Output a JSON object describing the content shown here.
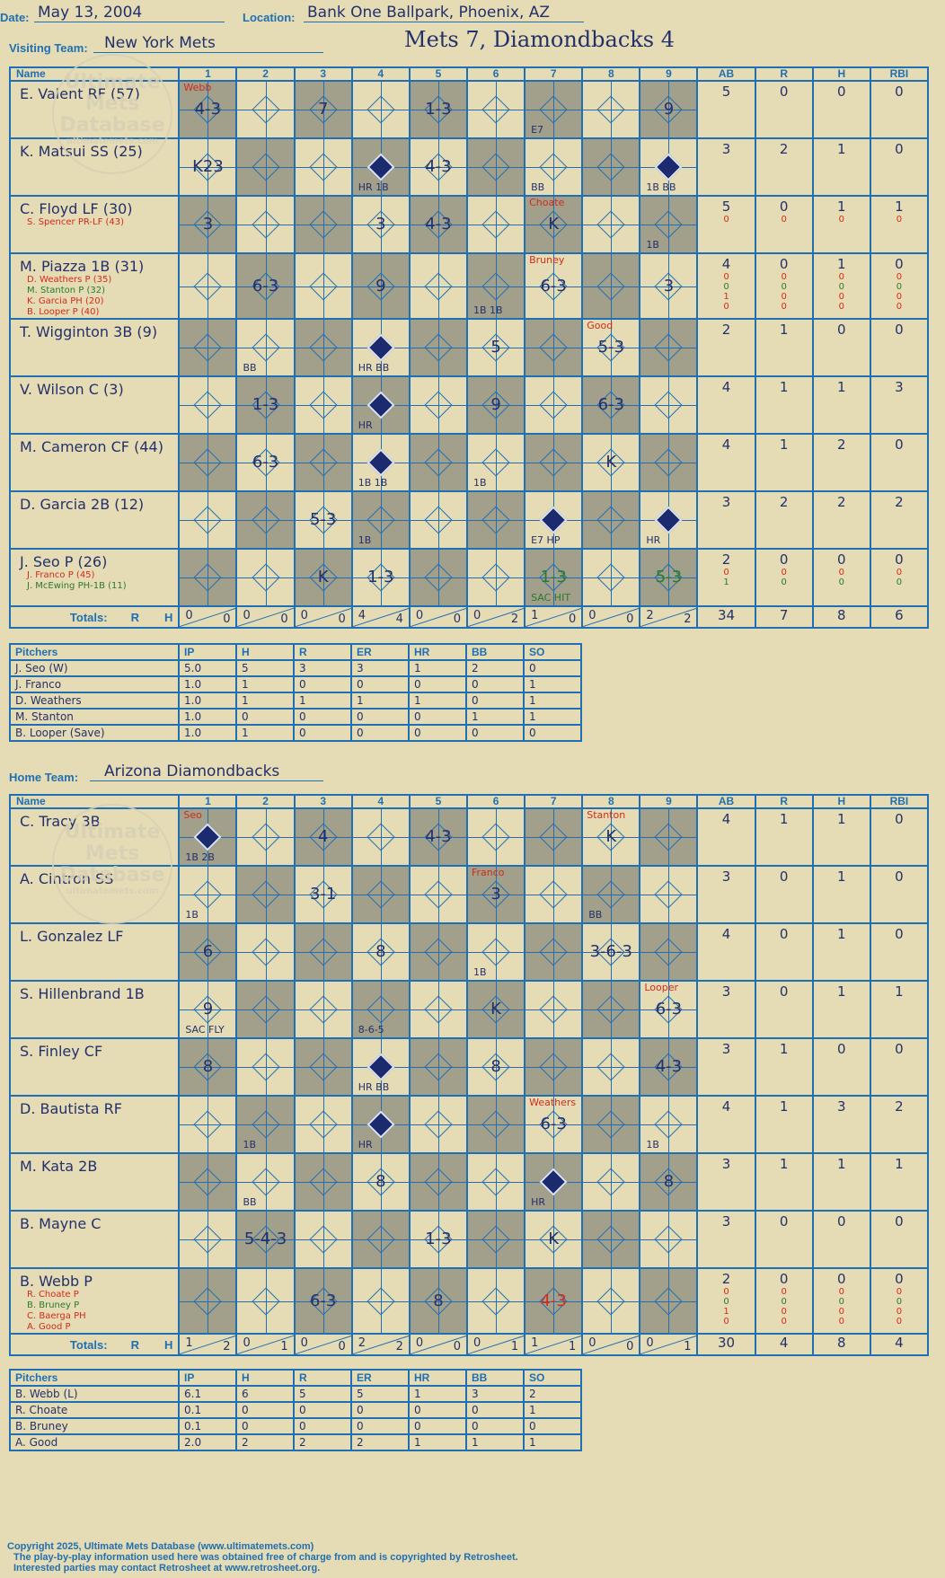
{
  "header": {
    "date_label": "Date:",
    "date": "May 13, 2004",
    "location_label": "Location:",
    "location": "Bank One Ballpark, Phoenix, AZ",
    "visiting_label": "Visiting Team:",
    "visiting_team": "New York Mets",
    "home_label": "Home Team:",
    "home_team": "Arizona Diamondbacks",
    "game_title": "Mets 7, Diamondbacks 4"
  },
  "watermark": {
    "line1": "Ultimate",
    "line2": "Mets",
    "line3": "Database",
    "line4": "ultimatemets.com"
  },
  "grid_headers": {
    "name": "Name",
    "innings": [
      "1",
      "2",
      "3",
      "4",
      "5",
      "6",
      "7",
      "8",
      "9"
    ],
    "stats": [
      "AB",
      "R",
      "H",
      "RBI"
    ],
    "totals_label": "Totals:",
    "r_label": "R",
    "h_label": "H"
  },
  "pitch_headers": {
    "pitchers": "Pitchers",
    "cols": [
      "IP",
      "H",
      "R",
      "ER",
      "HR",
      "BB",
      "SO"
    ]
  },
  "visiting": {
    "rows": [
      {
        "name": "E. Valent RF (57)",
        "subs": [],
        "stats": [
          [
            "5"
          ],
          [
            "0"
          ],
          [
            "0"
          ],
          [
            "0"
          ]
        ],
        "cells": [
          {
            "p": "4-3",
            "note": "Webb",
            "notecolor": "red"
          },
          {},
          {
            "p": "7"
          },
          {},
          {
            "p": "1-3"
          },
          {},
          {
            "p": "",
            "small": "E7"
          },
          {},
          {
            "p": "9"
          }
        ]
      },
      {
        "name": "K. Matsui SS (25)",
        "subs": [],
        "stats": [
          [
            "3"
          ],
          [
            "2"
          ],
          [
            "1"
          ],
          [
            "0"
          ]
        ],
        "cells": [
          {
            "p": "K23"
          },
          {},
          {},
          {
            "run": true,
            "small": "HR 1B"
          },
          {
            "p": "4-3"
          },
          {},
          {
            "p": "",
            "small": "BB"
          },
          {},
          {
            "run": true,
            "small": "1B BB"
          }
        ]
      },
      {
        "name": "C. Floyd LF (30)",
        "subs": [
          {
            "t": "S. Spencer PR-LF (43)",
            "c": "red"
          }
        ],
        "stats": [
          [
            "5",
            "0"
          ],
          [
            "0",
            "0"
          ],
          [
            "1",
            "0"
          ],
          [
            "1",
            "0"
          ]
        ],
        "cells": [
          {
            "p": "3"
          },
          {},
          {},
          {
            "p": "3"
          },
          {
            "p": "4-3"
          },
          {},
          {
            "p": "K",
            "note": "Choate",
            "notecolor": "red"
          },
          {},
          {
            "p": "",
            "small": "1B"
          }
        ]
      },
      {
        "name": "M. Piazza 1B (31)",
        "subs": [
          {
            "t": "D. Weathers P (35)",
            "c": "red"
          },
          {
            "t": "M. Stanton P (32)",
            "c": "green"
          },
          {
            "t": "K. Garcia PH (20)",
            "c": "red"
          },
          {
            "t": "B. Looper P (40)",
            "c": "red"
          }
        ],
        "stats": [
          [
            "4",
            "0",
            "0",
            "1",
            "0"
          ],
          [
            "0",
            "0",
            "0",
            "0",
            "0"
          ],
          [
            "1",
            "0",
            "0",
            "0",
            "0"
          ],
          [
            "0",
            "0",
            "0",
            "0",
            "0"
          ]
        ],
        "cells": [
          {},
          {
            "p": "6-3"
          },
          {},
          {
            "p": "9"
          },
          {},
          {
            "p": "",
            "small": "1B 1B"
          },
          {
            "p": "6-3",
            "note": "Bruney",
            "notecolor": "red"
          },
          {},
          {
            "p": "3"
          }
        ]
      },
      {
        "name": "T. Wigginton 3B (9)",
        "subs": [],
        "stats": [
          [
            "2"
          ],
          [
            "1"
          ],
          [
            "0"
          ],
          [
            "0"
          ]
        ],
        "cells": [
          {},
          {
            "p": "",
            "small": "BB"
          },
          {},
          {
            "run": true,
            "small": "HR BB"
          },
          {},
          {
            "p": "5"
          },
          {},
          {
            "p": "5-3",
            "note": "Good",
            "notecolor": "red"
          },
          {}
        ]
      },
      {
        "name": "V. Wilson C (3)",
        "subs": [],
        "stats": [
          [
            "4"
          ],
          [
            "1"
          ],
          [
            "1"
          ],
          [
            "3"
          ]
        ],
        "cells": [
          {},
          {
            "p": "1-3"
          },
          {},
          {
            "run": true,
            "small": "HR"
          },
          {},
          {
            "p": "9"
          },
          {},
          {
            "p": "6-3"
          },
          {}
        ]
      },
      {
        "name": "M. Cameron CF (44)",
        "subs": [],
        "stats": [
          [
            "4"
          ],
          [
            "1"
          ],
          [
            "2"
          ],
          [
            "0"
          ]
        ],
        "cells": [
          {},
          {
            "p": "6-3"
          },
          {},
          {
            "run": true,
            "small": "1B 1B"
          },
          {},
          {
            "p": "",
            "small": "1B"
          },
          {},
          {
            "p": "K"
          },
          {}
        ]
      },
      {
        "name": "D. Garcia 2B (12)",
        "subs": [],
        "stats": [
          [
            "3"
          ],
          [
            "2"
          ],
          [
            "2"
          ],
          [
            "2"
          ]
        ],
        "cells": [
          {},
          {},
          {
            "p": "5-3"
          },
          {
            "p": "",
            "small": "1B"
          },
          {},
          {},
          {
            "run": true,
            "small": "E7 HP"
          },
          {},
          {
            "run": true,
            "small": "HR"
          }
        ]
      },
      {
        "name": "J. Seo P (26)",
        "subs": [
          {
            "t": "J. Franco P (45)",
            "c": "red"
          },
          {
            "t": "J. McEwing PH-1B (11)",
            "c": "green"
          }
        ],
        "stats": [
          [
            "2",
            "0",
            "1"
          ],
          [
            "0",
            "0",
            "0"
          ],
          [
            "0",
            "0",
            "0"
          ],
          [
            "0",
            "0",
            "0"
          ]
        ],
        "cells": [
          {},
          {},
          {
            "p": "K"
          },
          {
            "p": "1-3"
          },
          {},
          {},
          {
            "p": "1-3",
            "small": "SAC HIT",
            "green": true
          },
          {},
          {
            "p": "5-3",
            "green": true
          }
        ]
      }
    ],
    "totals": [
      [
        "0",
        "0"
      ],
      [
        "0",
        "0"
      ],
      [
        "0",
        "0"
      ],
      [
        "4",
        "4"
      ],
      [
        "0",
        "0"
      ],
      [
        "0",
        "2"
      ],
      [
        "1",
        "0"
      ],
      [
        "0",
        "0"
      ],
      [
        "2",
        "2"
      ]
    ],
    "total_stats": [
      "34",
      "7",
      "8",
      "6"
    ],
    "pitchers": [
      [
        "J. Seo (W)",
        "5.0",
        "5",
        "3",
        "3",
        "1",
        "2",
        "0"
      ],
      [
        "J. Franco",
        "1.0",
        "1",
        "0",
        "0",
        "0",
        "0",
        "1"
      ],
      [
        "D. Weathers",
        "1.0",
        "1",
        "1",
        "1",
        "1",
        "0",
        "1"
      ],
      [
        "M. Stanton",
        "1.0",
        "0",
        "0",
        "0",
        "0",
        "1",
        "1"
      ],
      [
        "B. Looper (Save)",
        "1.0",
        "1",
        "0",
        "0",
        "0",
        "0",
        "0"
      ]
    ]
  },
  "home": {
    "rows": [
      {
        "name": "C. Tracy 3B",
        "subs": [],
        "stats": [
          [
            "4"
          ],
          [
            "1"
          ],
          [
            "1"
          ],
          [
            "0"
          ]
        ],
        "cells": [
          {
            "run": true,
            "small": "1B 2B",
            "note": "Seo",
            "notecolor": "red"
          },
          {},
          {
            "p": "4"
          },
          {},
          {
            "p": "4-3"
          },
          {},
          {},
          {
            "p": "K",
            "note": "Stanton",
            "notecolor": "red"
          },
          {}
        ]
      },
      {
        "name": "A. Cintron SS",
        "subs": [],
        "stats": [
          [
            "3"
          ],
          [
            "0"
          ],
          [
            "1"
          ],
          [
            "0"
          ]
        ],
        "cells": [
          {
            "p": "",
            "small": "1B"
          },
          {},
          {
            "p": "3-1"
          },
          {},
          {},
          {
            "p": "3",
            "note": "Franco",
            "notecolor": "red"
          },
          {},
          {
            "p": "",
            "small": "BB"
          },
          {}
        ]
      },
      {
        "name": "L. Gonzalez LF",
        "subs": [],
        "stats": [
          [
            "4"
          ],
          [
            "0"
          ],
          [
            "1"
          ],
          [
            "0"
          ]
        ],
        "cells": [
          {
            "p": "6"
          },
          {},
          {},
          {
            "p": "8"
          },
          {},
          {
            "p": "",
            "small": "1B"
          },
          {},
          {
            "p": "3-6-3"
          },
          {}
        ]
      },
      {
        "name": "S. Hillenbrand 1B",
        "subs": [],
        "stats": [
          [
            "3"
          ],
          [
            "0"
          ],
          [
            "1"
          ],
          [
            "1"
          ]
        ],
        "cells": [
          {
            "p": "9",
            "small": "SAC FLY"
          },
          {},
          {},
          {
            "p": "",
            "small": "8-6-5"
          },
          {},
          {
            "p": "K"
          },
          {},
          {},
          {
            "p": "6-3",
            "note": "Looper",
            "notecolor": "red"
          }
        ]
      },
      {
        "name": "S. Finley CF",
        "subs": [],
        "stats": [
          [
            "3"
          ],
          [
            "1"
          ],
          [
            "0"
          ],
          [
            "0"
          ]
        ],
        "cells": [
          {
            "p": "8"
          },
          {},
          {},
          {
            "run": true,
            "small": "HR BB"
          },
          {},
          {
            "p": "8"
          },
          {},
          {},
          {
            "p": "4-3"
          }
        ]
      },
      {
        "name": "D. Bautista RF",
        "subs": [],
        "stats": [
          [
            "4"
          ],
          [
            "1"
          ],
          [
            "3"
          ],
          [
            "2"
          ]
        ],
        "cells": [
          {},
          {
            "p": "",
            "small": "1B"
          },
          {},
          {
            "run": true,
            "small": "HR"
          },
          {},
          {},
          {
            "p": "6-3",
            "note": "Weathers",
            "notecolor": "red"
          },
          {},
          {
            "p": "",
            "small": "1B"
          }
        ]
      },
      {
        "name": "M. Kata 2B",
        "subs": [],
        "stats": [
          [
            "3"
          ],
          [
            "1"
          ],
          [
            "1"
          ],
          [
            "1"
          ]
        ],
        "cells": [
          {},
          {
            "p": "",
            "small": "BB"
          },
          {},
          {
            "p": "8"
          },
          {},
          {},
          {
            "run": true,
            "small": "HR"
          },
          {},
          {
            "p": "8"
          }
        ]
      },
      {
        "name": "B. Mayne C",
        "subs": [],
        "stats": [
          [
            "3"
          ],
          [
            "0"
          ],
          [
            "0"
          ],
          [
            "0"
          ]
        ],
        "cells": [
          {},
          {
            "p": "5-4-3"
          },
          {},
          {},
          {
            "p": "1-3"
          },
          {},
          {
            "p": "K"
          },
          {},
          {}
        ]
      },
      {
        "name": "B. Webb P",
        "subs": [
          {
            "t": "R. Choate P",
            "c": "red"
          },
          {
            "t": "B. Bruney P",
            "c": "green"
          },
          {
            "t": "C. Baerga PH",
            "c": "red"
          },
          {
            "t": "A. Good P",
            "c": "red"
          }
        ],
        "stats": [
          [
            "2",
            "0",
            "0",
            "1",
            "0"
          ],
          [
            "0",
            "0",
            "0",
            "0",
            "0"
          ],
          [
            "0",
            "0",
            "0",
            "0",
            "0"
          ],
          [
            "0",
            "0",
            "0",
            "0",
            "0"
          ]
        ],
        "cells": [
          {},
          {},
          {
            "p": "6-3"
          },
          {},
          {
            "p": "8"
          },
          {},
          {
            "p": "4-3",
            "red": true
          },
          {},
          {}
        ]
      }
    ],
    "totals": [
      [
        "1",
        "2"
      ],
      [
        "0",
        "1"
      ],
      [
        "0",
        "0"
      ],
      [
        "2",
        "2"
      ],
      [
        "0",
        "0"
      ],
      [
        "0",
        "1"
      ],
      [
        "1",
        "1"
      ],
      [
        "0",
        "0"
      ],
      [
        "0",
        "1"
      ]
    ],
    "total_stats": [
      "30",
      "4",
      "8",
      "4"
    ],
    "pitchers": [
      [
        "B. Webb (L)",
        "6.1",
        "6",
        "5",
        "5",
        "1",
        "3",
        "2"
      ],
      [
        "R. Choate",
        "0.1",
        "0",
        "0",
        "0",
        "0",
        "0",
        "1"
      ],
      [
        "B. Bruney",
        "0.1",
        "0",
        "0",
        "0",
        "0",
        "0",
        "0"
      ],
      [
        "A. Good",
        "2.0",
        "2",
        "2",
        "2",
        "1",
        "1",
        "1"
      ]
    ]
  },
  "footer": {
    "line1": "Copyright 2025, Ultimate Mets Database (www.ultimatemets.com)",
    "line2": "The play-by-play information used here was obtained free of charge from and is copyrighted by Retrosheet.",
    "line3": "Interested parties may contact Retrosheet at www.retrosheet.org."
  }
}
